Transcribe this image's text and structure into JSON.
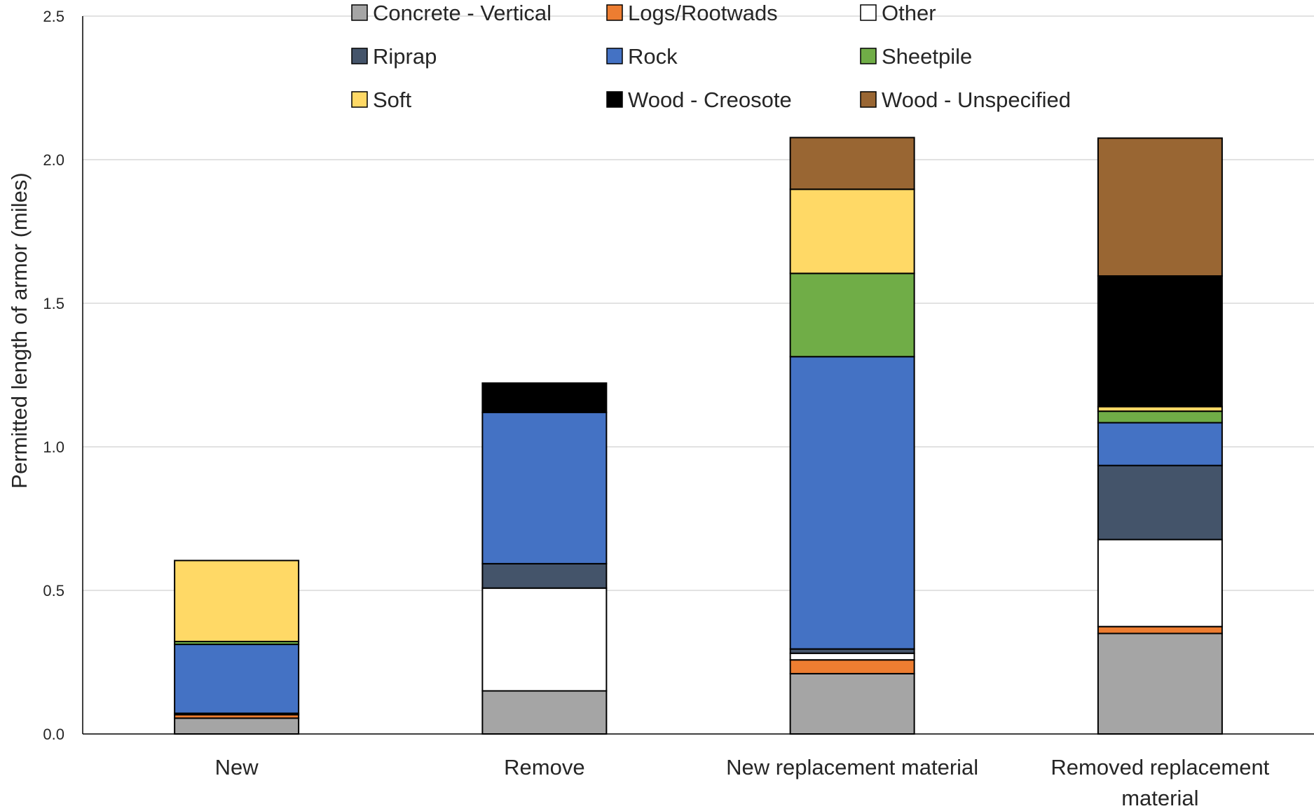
{
  "chart_data": {
    "type": "bar",
    "stacked": true,
    "ylabel": "Permitted length of armor (miles)",
    "ylim": [
      0,
      2.5
    ],
    "yticks": [
      "0.0",
      "0.5",
      "1.0",
      "1.5",
      "2.0",
      "2.5"
    ],
    "grid": true,
    "legend_position": "top",
    "categories": [
      [
        "New"
      ],
      [
        "Remove"
      ],
      [
        "New replacement material"
      ],
      [
        "Removed replacement",
        "material"
      ]
    ],
    "series": [
      {
        "name": "Concrete - Vertical",
        "color": "#a5a5a5",
        "values": [
          0.055,
          0.15,
          0.21,
          0.35
        ]
      },
      {
        "name": "Logs/Rootwads",
        "color": "#ed7d31",
        "values": [
          0.012,
          0.0,
          0.048,
          0.024
        ]
      },
      {
        "name": "Other",
        "color": "#ffffff",
        "values": [
          0.0,
          0.358,
          0.023,
          0.303
        ]
      },
      {
        "name": "Riprap",
        "color": "#44546a",
        "values": [
          0.005,
          0.085,
          0.015,
          0.258
        ]
      },
      {
        "name": "Rock",
        "color": "#4472c4",
        "values": [
          0.24,
          0.527,
          1.018,
          0.149
        ]
      },
      {
        "name": "Sheetpile",
        "color": "#70ad47",
        "values": [
          0.01,
          0.0,
          0.29,
          0.04
        ]
      },
      {
        "name": "Soft",
        "color": "#ffd966",
        "values": [
          0.282,
          0.0,
          0.293,
          0.016
        ]
      },
      {
        "name": "Wood - Creosote",
        "color": "#000000",
        "values": [
          0.0,
          0.102,
          0.0,
          0.455
        ]
      },
      {
        "name": "Wood - Unspecified",
        "color": "#996633",
        "values": [
          0.0,
          0.0,
          0.18,
          0.48
        ]
      }
    ]
  }
}
